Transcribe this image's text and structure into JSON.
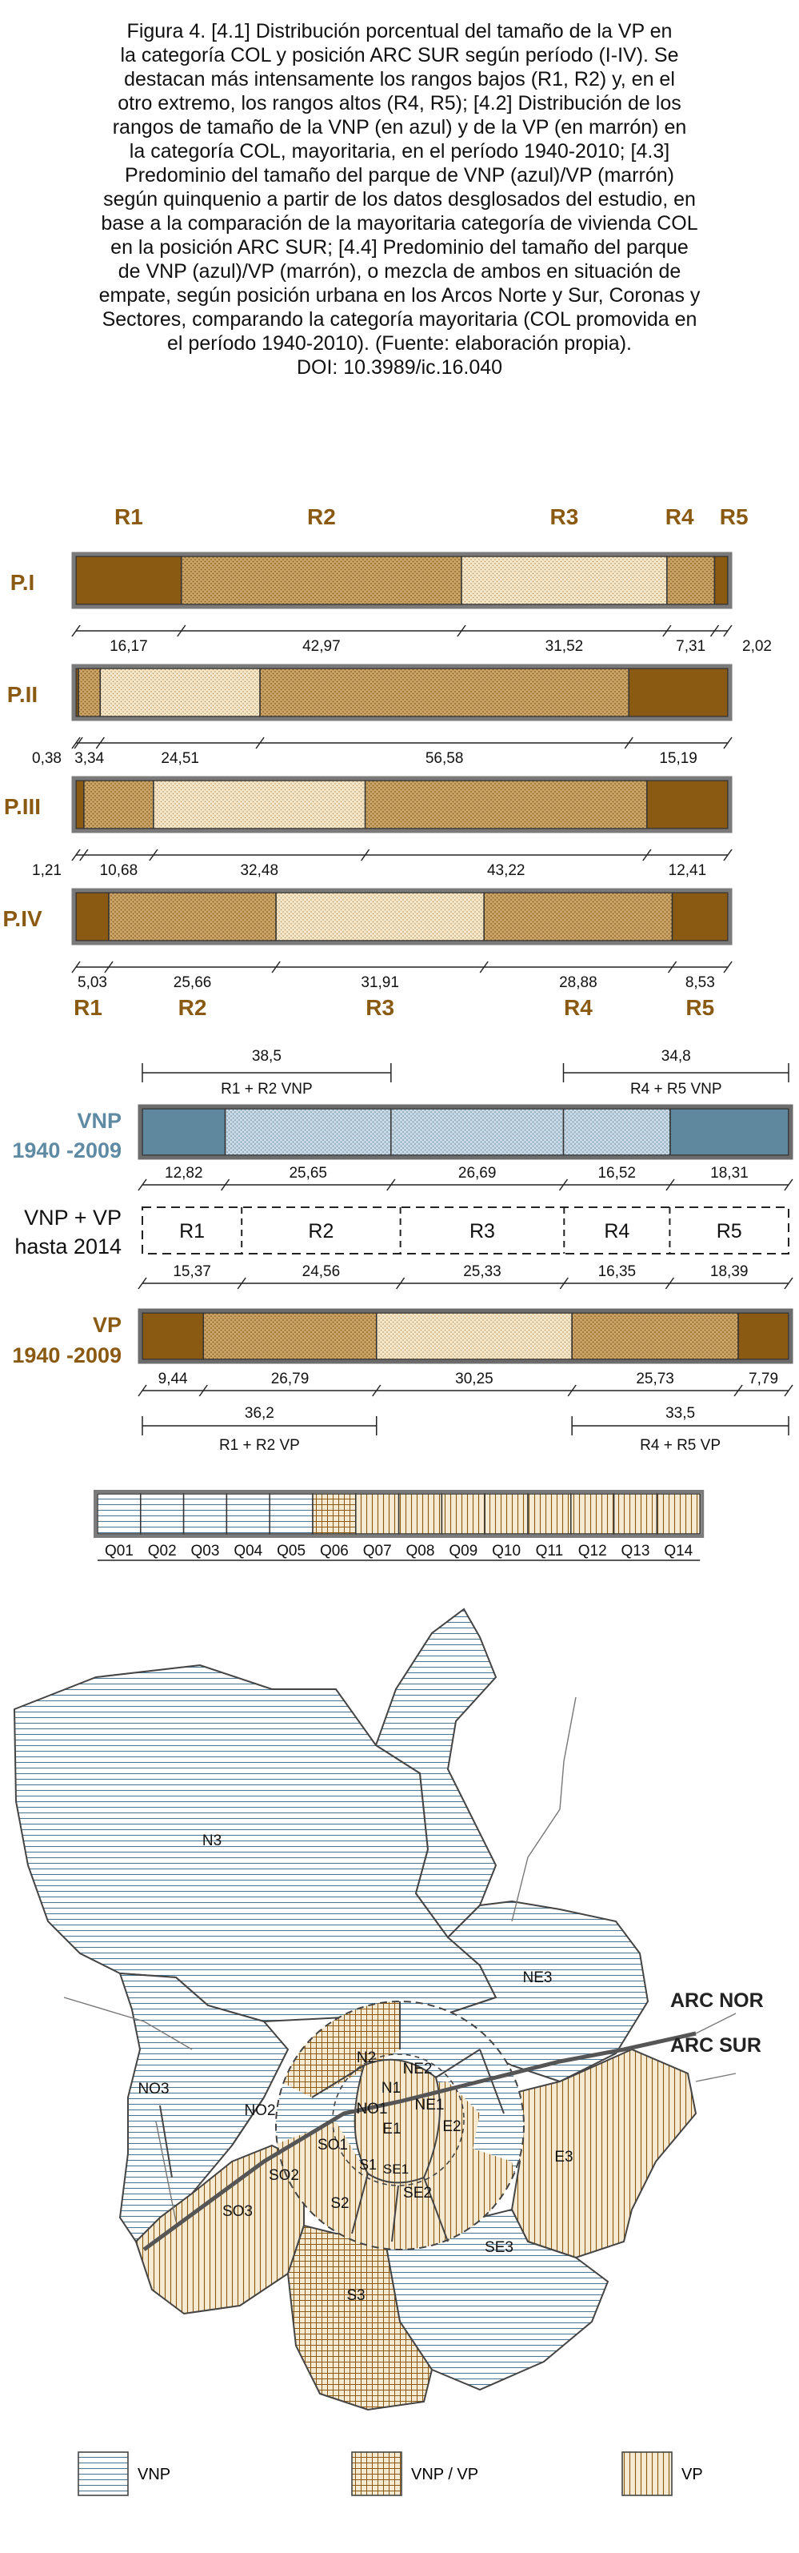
{
  "caption": {
    "lines": [
      "Figura 4. [4.1] Distribución porcentual del tamaño de la VP en",
      "la categoría COL y posición ARC SUR según período (I-IV). Se",
      "destacan más intensamente los rangos bajos (R1, R2) y, en el",
      "otro extremo, los rangos altos (R4, R5); [4.2] Distribución de los",
      "rangos de tamaño de la VNP (en azul) y de la VP (en marrón) en",
      "la categoría COL, mayoritaria, en el período 1940-2010; [4.3]",
      "Predominio del tamaño del parque de VNP (azul)/VP (marrón)",
      "según quinquenio a partir de los datos desglosados del estudio, en",
      "base a la comparación de la mayoritaria categoría de vivienda COL",
      "en la posición ARC SUR; [4.4] Predominio del tamaño del parque",
      "de VNP (azul)/VP (marrón), o mezcla de ambos en situación de",
      "empate, según posición urbana en los Arcos Norte y Sur, Coronas y",
      "Sectores, comparando la categoría mayoritaria (COL promovida en",
      "el período 1940-2010). (Fuente: elaboración propia).",
      "DOI: 10.3989/ic.16.040"
    ]
  },
  "colors": {
    "brown": "#8b5a12",
    "tan": "#c9a46a",
    "light_tan": "#f4e6c8",
    "blue": "#5f879e",
    "light_blue": "#c8d8e4",
    "title_brown": "#8b5a12",
    "title_blue": "#5f8aa3"
  },
  "chart_data": [
    {
      "type": "bar",
      "subtype": "stacked-horizontal-100",
      "range_labels": [
        "R1",
        "R2",
        "R3",
        "R4",
        "R5"
      ],
      "bottom_range_labels": [
        "R1",
        "R2",
        "R3",
        "R4",
        "R5"
      ],
      "series": [
        {
          "name": "P.I",
          "values": [
            16.17,
            42.97,
            31.52,
            7.31,
            2.02
          ],
          "labels": [
            "16,17",
            "42,97",
            "31,52",
            "7,31",
            "2,02"
          ],
          "fills": [
            "brown",
            "tan",
            "light_tan",
            "tan",
            "brown"
          ]
        },
        {
          "name": "P.II",
          "values": [
            0.38,
            3.34,
            24.51,
            56.58,
            15.19
          ],
          "labels": [
            "0,38",
            "3,34",
            "24,51",
            "56,58",
            "15,19"
          ],
          "fills": [
            "brown",
            "tan",
            "light_tan",
            "tan",
            "brown"
          ]
        },
        {
          "name": "P.III",
          "values": [
            1.21,
            10.68,
            32.48,
            43.22,
            12.41
          ],
          "labels": [
            "1,21",
            "10,68",
            "32,48",
            "43,22",
            "12,41"
          ],
          "fills": [
            "brown",
            "tan",
            "light_tan",
            "tan",
            "brown"
          ]
        },
        {
          "name": "P.IV",
          "values": [
            5.03,
            25.66,
            31.91,
            28.88,
            8.53
          ],
          "labels": [
            "5,03",
            "25,66",
            "31,91",
            "28,88",
            "8,53"
          ],
          "fills": [
            "brown",
            "tan",
            "light_tan",
            "tan",
            "brown"
          ]
        }
      ]
    },
    {
      "type": "bar",
      "subtype": "stacked-horizontal-100",
      "vnp": {
        "title_top": "VNP",
        "title_bottom": "1940 -2009",
        "values": [
          12.82,
          25.65,
          26.69,
          16.52,
          18.31
        ],
        "labels": [
          "12,82",
          "25,65",
          "26,69",
          "16,52",
          "18,31"
        ],
        "fills": [
          "blue",
          "light_blue",
          "light_blue",
          "light_blue",
          "blue"
        ],
        "group_low": {
          "value": 38.5,
          "label": "38,5",
          "text": "R1 + R2 VNP"
        },
        "group_high": {
          "value": 34.8,
          "label": "34,8",
          "text": "R4 + R5 VNP"
        }
      },
      "combined": {
        "title_top": "VNP + VP",
        "title_bottom": "hasta 2014",
        "ranges": [
          "R1",
          "R2",
          "R3",
          "R4",
          "R5"
        ],
        "values": [
          15.37,
          24.56,
          25.33,
          16.35,
          18.39
        ],
        "labels": [
          "15,37",
          "24,56",
          "25,33",
          "16,35",
          "18,39"
        ]
      },
      "vp": {
        "title_top": "VP",
        "title_bottom": "1940 -2009",
        "values": [
          9.44,
          26.79,
          30.25,
          25.73,
          7.79
        ],
        "labels": [
          "9,44",
          "26,79",
          "30,25",
          "25,73",
          "7,79"
        ],
        "fills": [
          "brown",
          "tan",
          "light_tan",
          "tan",
          "brown"
        ],
        "group_low": {
          "value": 36.2,
          "label": "36,2",
          "text": "R1 + R2 VP"
        },
        "group_high": {
          "value": 33.5,
          "label": "33,5",
          "text": "R4 + R5 VP"
        }
      }
    },
    {
      "type": "bar",
      "subtype": "quinquennium-strip",
      "cells": [
        {
          "label": "Q01",
          "pattern": "VNP"
        },
        {
          "label": "Q02",
          "pattern": "VNP"
        },
        {
          "label": "Q03",
          "pattern": "VNP"
        },
        {
          "label": "Q04",
          "pattern": "VNP"
        },
        {
          "label": "Q05",
          "pattern": "VNP"
        },
        {
          "label": "Q06",
          "pattern": "VNP / VP"
        },
        {
          "label": "Q07",
          "pattern": "VP"
        },
        {
          "label": "Q08",
          "pattern": "VP"
        },
        {
          "label": "Q09",
          "pattern": "VP"
        },
        {
          "label": "Q10",
          "pattern": "VP"
        },
        {
          "label": "Q11",
          "pattern": "VP"
        },
        {
          "label": "Q12",
          "pattern": "VP"
        },
        {
          "label": "Q13",
          "pattern": "VP"
        },
        {
          "label": "Q14",
          "pattern": "VP"
        }
      ]
    }
  ],
  "map": {
    "arc_labels": [
      "ARC NOR",
      "ARC SUR"
    ],
    "zones": [
      {
        "label": "N3",
        "pattern": "VNP"
      },
      {
        "label": "NE3",
        "pattern": "VNP"
      },
      {
        "label": "NO3",
        "pattern": "VNP"
      },
      {
        "label": "N2",
        "pattern": "VNP / VP"
      },
      {
        "label": "NE2",
        "pattern": "VNP"
      },
      {
        "label": "N1",
        "pattern": "VP"
      },
      {
        "label": "NE1",
        "pattern": "VNP"
      },
      {
        "label": "NO1",
        "pattern": "VP"
      },
      {
        "label": "NO2",
        "pattern": "VNP"
      },
      {
        "label": "SO1",
        "pattern": "VP"
      },
      {
        "label": "E1",
        "pattern": "VP"
      },
      {
        "label": "E2",
        "pattern": "VNP"
      },
      {
        "label": "E3",
        "pattern": "VP"
      },
      {
        "label": "S1",
        "pattern": "VP"
      },
      {
        "label": "SE1",
        "pattern": "VNP"
      },
      {
        "label": "SO2",
        "pattern": "VP"
      },
      {
        "label": "S2",
        "pattern": "VP"
      },
      {
        "label": "SE2",
        "pattern": "VP"
      },
      {
        "label": "SO3",
        "pattern": "VP"
      },
      {
        "label": "S3",
        "pattern": "VNP / VP"
      },
      {
        "label": "SE3",
        "pattern": "VNP"
      }
    ],
    "legend": [
      "VNP",
      "VNP / VP",
      "VP"
    ]
  }
}
